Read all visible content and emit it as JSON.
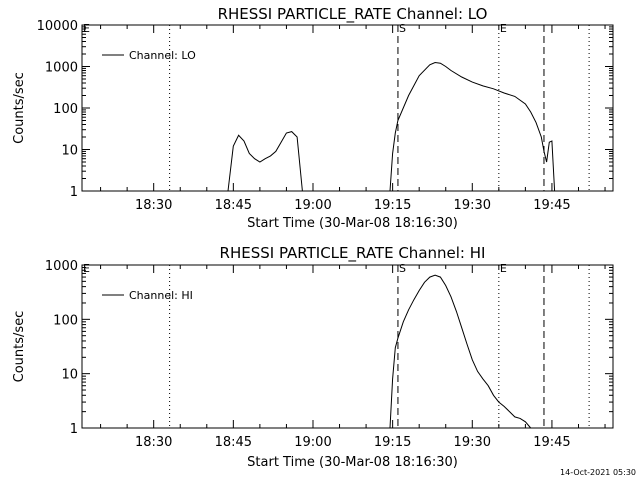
{
  "footer_timestamp": "14-Oct-2021 05:30",
  "chart_data": [
    {
      "type": "line",
      "title": "RHESSI PARTICLE_RATE Channel: LO",
      "xlabel": "Start Time (30-Mar-08 18:16:30)",
      "ylabel": "Counts/sec",
      "y_scale": "log",
      "ylim": [
        1,
        10000
      ],
      "xlim": [
        "18:16:30",
        "19:56:30"
      ],
      "x_ticks": [
        "18:30",
        "18:45",
        "19:00",
        "19:15",
        "19:30",
        "19:45"
      ],
      "y_ticks": [
        "1",
        "10",
        "100",
        "1000",
        "10000"
      ],
      "legend": {
        "position": "top-left",
        "label": "Channel: LO"
      },
      "markers": [
        {
          "time": "19:16:00",
          "style": "dashed",
          "label": "S"
        },
        {
          "time": "19:35:00",
          "style": "dotted",
          "label": "E"
        },
        {
          "time": "19:43:30",
          "style": "dashed",
          "label": ""
        },
        {
          "time": "18:33:00",
          "style": "dotted",
          "label": ""
        },
        {
          "time": "19:52:00",
          "style": "dotted",
          "label": ""
        },
        {
          "time": "18:16:30",
          "style": "none",
          "label": "E"
        }
      ],
      "series": [
        {
          "name": "Channel: LO",
          "segments": [
            [
              [
                "18:44:00",
                1
              ],
              [
                "18:45:00",
                12
              ],
              [
                "18:46:00",
                22
              ],
              [
                "18:47:00",
                16
              ],
              [
                "18:48:00",
                8
              ],
              [
                "18:49:00",
                6
              ],
              [
                "18:50:00",
                5
              ],
              [
                "18:51:00",
                6
              ],
              [
                "18:52:00",
                7
              ],
              [
                "18:53:00",
                9
              ],
              [
                "18:54:00",
                15
              ],
              [
                "18:55:00",
                25
              ],
              [
                "18:56:00",
                27
              ],
              [
                "18:57:00",
                20
              ],
              [
                "18:58:00",
                1
              ]
            ],
            [
              [
                "19:14:30",
                1
              ],
              [
                "19:15:00",
                8
              ],
              [
                "19:15:30",
                25
              ],
              [
                "19:16:00",
                50
              ],
              [
                "19:18:00",
                200
              ],
              [
                "19:20:00",
                600
              ],
              [
                "19:22:00",
                1100
              ],
              [
                "19:23:00",
                1250
              ],
              [
                "19:24:00",
                1200
              ],
              [
                "19:25:00",
                1000
              ],
              [
                "19:26:00",
                800
              ],
              [
                "19:28:00",
                560
              ],
              [
                "19:30:00",
                420
              ],
              [
                "19:32:00",
                340
              ],
              [
                "19:34:00",
                290
              ],
              [
                "19:36:00",
                230
              ],
              [
                "19:38:00",
                190
              ],
              [
                "19:40:00",
                125
              ],
              [
                "19:41:00",
                80
              ],
              [
                "19:42:00",
                45
              ],
              [
                "19:43:00",
                20
              ],
              [
                "19:43:30",
                9
              ],
              [
                "19:44:00",
                5
              ],
              [
                "19:44:30",
                15
              ],
              [
                "19:45:00",
                16
              ],
              [
                "19:45:30",
                1
              ]
            ]
          ]
        }
      ]
    },
    {
      "type": "line",
      "title": "RHESSI PARTICLE_RATE Channel: HI",
      "xlabel": "Start Time (30-Mar-08 18:16:30)",
      "ylabel": "Counts/sec",
      "y_scale": "log",
      "ylim": [
        1,
        1000
      ],
      "xlim": [
        "18:16:30",
        "19:56:30"
      ],
      "x_ticks": [
        "18:30",
        "18:45",
        "19:00",
        "19:15",
        "19:30",
        "19:45"
      ],
      "y_ticks": [
        "1",
        "10",
        "100",
        "1000"
      ],
      "legend": {
        "position": "top-left",
        "label": "Channel: HI"
      },
      "markers": [
        {
          "time": "19:16:00",
          "style": "dashed",
          "label": "S"
        },
        {
          "time": "19:35:00",
          "style": "dotted",
          "label": "E"
        },
        {
          "time": "19:43:30",
          "style": "dashed",
          "label": ""
        },
        {
          "time": "18:33:00",
          "style": "dotted",
          "label": ""
        },
        {
          "time": "19:52:00",
          "style": "dotted",
          "label": ""
        },
        {
          "time": "18:16:30",
          "style": "none",
          "label": "E"
        }
      ],
      "series": [
        {
          "name": "Channel: HI",
          "segments": [
            [
              [
                "19:14:30",
                1
              ],
              [
                "19:15:00",
                8
              ],
              [
                "19:15:30",
                30
              ],
              [
                "19:16:00",
                45
              ],
              [
                "19:17:00",
                90
              ],
              [
                "19:18:00",
                150
              ],
              [
                "19:19:00",
                230
              ],
              [
                "19:20:00",
                340
              ],
              [
                "19:21:00",
                480
              ],
              [
                "19:22:00",
                600
              ],
              [
                "19:23:00",
                650
              ],
              [
                "19:24:00",
                600
              ],
              [
                "19:25:00",
                420
              ],
              [
                "19:26:00",
                260
              ],
              [
                "19:27:00",
                140
              ],
              [
                "19:28:00",
                70
              ],
              [
                "19:29:00",
                35
              ],
              [
                "19:30:00",
                18
              ],
              [
                "19:31:00",
                11
              ],
              [
                "19:32:00",
                8
              ],
              [
                "19:33:00",
                6
              ],
              [
                "19:34:00",
                4
              ],
              [
                "19:35:00",
                3
              ],
              [
                "19:36:00",
                2.5
              ],
              [
                "19:37:00",
                2
              ],
              [
                "19:38:00",
                1.6
              ],
              [
                "19:39:00",
                1.5
              ],
              [
                "19:40:00",
                1.3
              ],
              [
                "19:41:00",
                1
              ]
            ]
          ]
        }
      ]
    }
  ]
}
